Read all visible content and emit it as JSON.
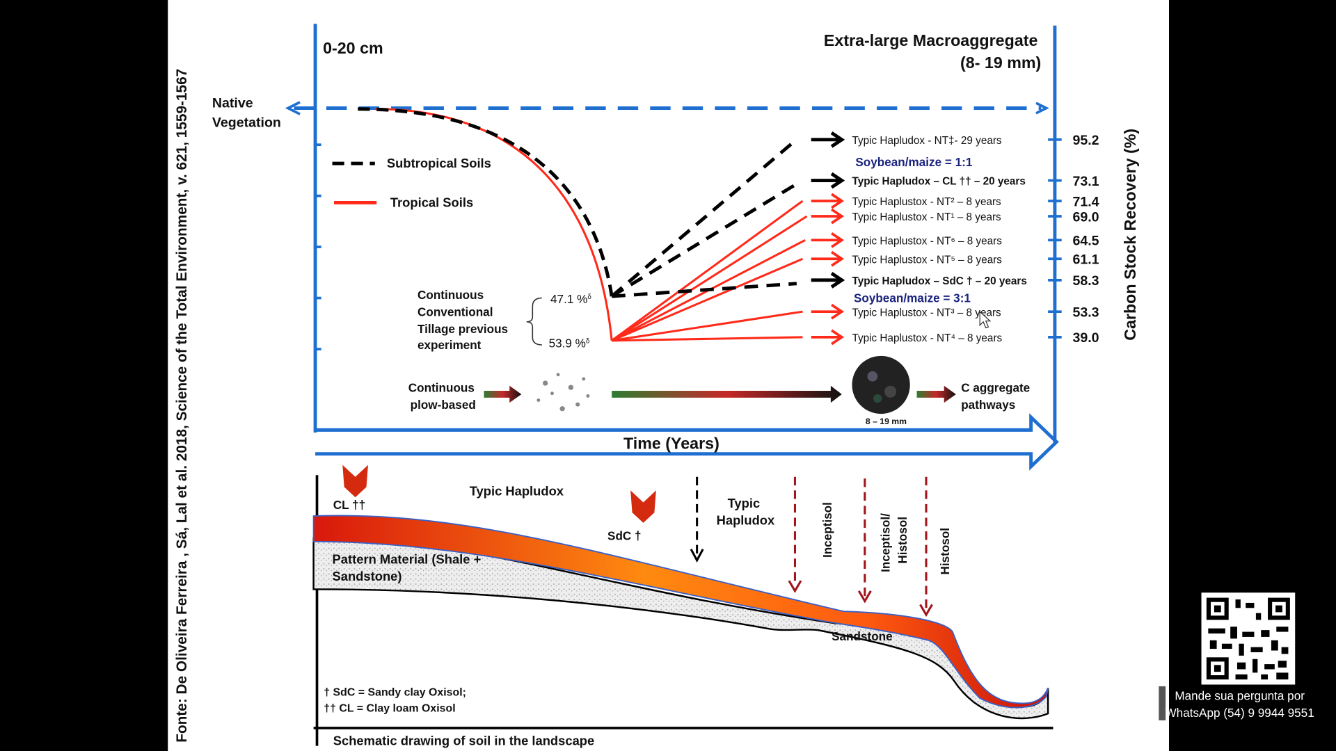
{
  "citation": "Fonte: De Oliveira Ferreira , Sá, Lal et al. 2018, Science of the Total Environment, v. 621, 1559-1567",
  "depth_label": "0-20 cm",
  "title_line1": "Extra-large Macroaggregate",
  "title_line2": "(8- 19 mm)",
  "native_vegetation_line1": "Native",
  "native_vegetation_line2": "Vegetation",
  "legend": {
    "subtropical": "Subtropical Soils",
    "tropical": "Tropical Soils"
  },
  "tillage_label": [
    "Continuous",
    "Conventional",
    "Tillage previous",
    "experiment"
  ],
  "tillage_values": {
    "subtropical": "47.1 %",
    "tropical": "53.9 %",
    "marker": "δ"
  },
  "y_axis_label": "Carbon Stock Recovery (%)",
  "x_axis_label": "Time (Years)",
  "ratio_labels": {
    "upper": "Soybean/maize = 1:1",
    "lower": "Soybean/maize = 3:1"
  },
  "colors": {
    "axis": "#1f6fd1",
    "tropical": "#ff2a1a",
    "subtropical": "#000000",
    "ratio_text": "#1a237e"
  },
  "pathways": [
    {
      "label": "Typic Hapludox - NT‡- 29 years",
      "value": "95.2",
      "soil": "subtropical",
      "bold": false
    },
    {
      "label": "Typic Hapludox – CL †† – 20 years",
      "value": "73.1",
      "soil": "subtropical",
      "bold": true
    },
    {
      "label": "Typic Haplustox - NT² – 8 years",
      "value": "71.4",
      "soil": "tropical",
      "bold": false
    },
    {
      "label": "Typic Haplustox - NT¹ – 8 years",
      "value": "69.0",
      "soil": "tropical",
      "bold": false
    },
    {
      "label": "Typic Haplustox - NT⁶ – 8 years",
      "value": "64.5",
      "soil": "tropical",
      "bold": false
    },
    {
      "label": "Typic Haplustox - NT⁵ – 8 years",
      "value": "61.1",
      "soil": "tropical",
      "bold": false
    },
    {
      "label": "Typic Hapludox – SdC † – 20 years",
      "value": "58.3",
      "soil": "subtropical",
      "bold": true
    },
    {
      "label": "Typic Haplustox - NT³ – 8 years",
      "value": "53.3",
      "soil": "tropical",
      "bold": false
    },
    {
      "label": "Typic Haplustox - NT⁴ – 8 years",
      "value": "39.0",
      "soil": "tropical",
      "bold": false
    }
  ],
  "aggregate_row": {
    "start_line1": "Continuous",
    "start_line2": "plow-based",
    "size_label": "8 – 19 mm",
    "end_line1": "C aggregate",
    "end_line2": "pathways"
  },
  "landscape": {
    "cl_label": "CL ††",
    "sdc_label": "SdC †",
    "hapludox_top": "Typic Hapludox",
    "hapludox_mid_line1": "Typic",
    "hapludox_mid_line2": "Hapludox",
    "inceptisol": "Inceptisol",
    "inceptisol_histosol_line1": "Inceptisol/",
    "inceptisol_histosol_line2": "Histosol",
    "histosol": "Histosol",
    "parent_line1": "Pattern Material (Shale +",
    "parent_line2": "Sandstone)",
    "sandstone": "Sandstone",
    "footnote1": "† SdC = Sandy clay Oxisol;",
    "footnote2": "†† CL = Clay loam Oxisol",
    "caption": "Schematic drawing of soil in the landscape"
  },
  "whatsapp": {
    "line1": "Mande sua pergunta por",
    "line2": "WhatsApp (54) 9 9944 9551"
  }
}
